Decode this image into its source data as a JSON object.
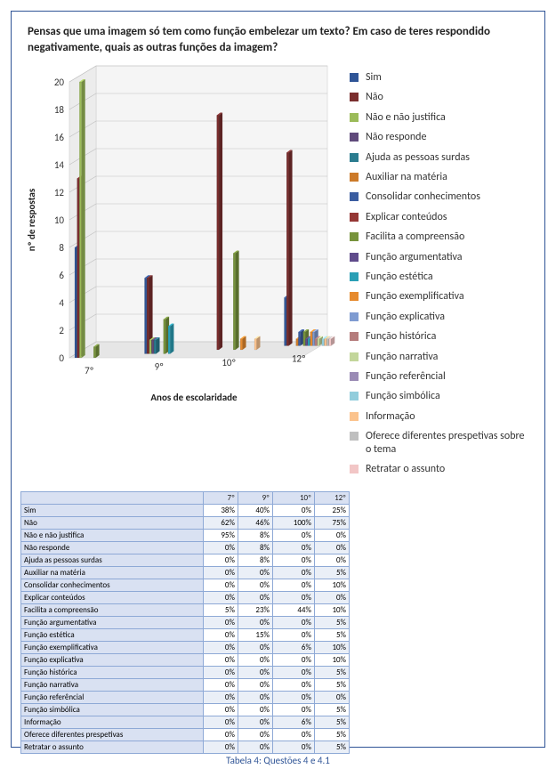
{
  "title": "Pensas que uma imagem só tem como função embelezar um texto? Em caso de teres respondido negativamente, quais as outras funções da imagem?",
  "caption": "Tabela 4: Questões 4 e 4.1",
  "chart": {
    "type": "3d-bar",
    "ylabel": "nº de respostas",
    "xlabel": "Anos de escolaridade",
    "ylim": [
      0,
      20
    ],
    "ytick_step": 2,
    "label_fontsize": 11,
    "tick_fontsize": 11,
    "grid_color": "#bfbfbf",
    "background_color": "#ffffff",
    "floor_color": "#e6e6e6",
    "categories": [
      "7º",
      "9º",
      "10º",
      "12º"
    ],
    "series": [
      {
        "name": "Sim",
        "color": "#2f5597",
        "values": [
          8,
          5.5,
          0,
          3.5
        ]
      },
      {
        "name": "Não",
        "color": "#7a2e2e",
        "values": [
          13,
          5.5,
          17,
          14
        ]
      },
      {
        "name": "Não e não justifica",
        "color": "#9bbb59",
        "values": [
          20,
          1,
          0,
          0
        ]
      },
      {
        "name": "Não responde",
        "color": "#604a7b",
        "values": [
          0,
          1,
          0,
          0
        ]
      },
      {
        "name": "Ajuda as pessoas surdas",
        "color": "#2b7c8f",
        "values": [
          0,
          1,
          0,
          0
        ]
      },
      {
        "name": "Auxiliar na matéria",
        "color": "#cc7a29",
        "values": [
          0,
          0,
          0,
          0.5
        ]
      },
      {
        "name": "Consolidar conhecimentos",
        "color": "#3b5da0",
        "values": [
          0,
          0,
          0,
          1
        ]
      },
      {
        "name": "Explicar conteúdos",
        "color": "#953735",
        "values": [
          0,
          0,
          0,
          0
        ]
      },
      {
        "name": "Facilita a compreensão",
        "color": "#77933c",
        "values": [
          0.8,
          2.5,
          7,
          1
        ]
      },
      {
        "name": "Função argumentativa",
        "color": "#5f4b8b",
        "values": [
          0,
          0,
          0,
          0.5
        ]
      },
      {
        "name": "Função estética",
        "color": "#2a9fb5",
        "values": [
          0,
          2,
          0,
          0.5
        ]
      },
      {
        "name": "Função exemplificativa",
        "color": "#e68a2e",
        "values": [
          0,
          0,
          0.8,
          1
        ]
      },
      {
        "name": "Função explicativa",
        "color": "#7f9bd1",
        "values": [
          0,
          0,
          0,
          1
        ]
      },
      {
        "name": "Função histórica",
        "color": "#b57c7c",
        "values": [
          0,
          0,
          0,
          0.5
        ]
      },
      {
        "name": "Função narrativa",
        "color": "#c3d69b",
        "values": [
          0,
          0,
          0,
          0.5
        ]
      },
      {
        "name": "Função referêncial",
        "color": "#9a8bb5",
        "values": [
          0,
          0,
          0,
          0
        ]
      },
      {
        "name": "Função simbólica",
        "color": "#92cddc",
        "values": [
          0,
          0,
          0,
          0.5
        ]
      },
      {
        "name": "Informação",
        "color": "#fbc38d",
        "values": [
          0,
          0,
          0.8,
          0.5
        ]
      },
      {
        "name": "Oferece diferentes prespetivas sobre o tema",
        "color": "#bfbfbf",
        "values": [
          0,
          0,
          0,
          0.5
        ]
      },
      {
        "name": "Retratar o assunto",
        "color": "#f2c6c6",
        "values": [
          0,
          0,
          0,
          0.5
        ]
      }
    ]
  },
  "table": {
    "columns": [
      "",
      "7º",
      "9º",
      "10º",
      "12º"
    ],
    "rows": [
      [
        "Sim",
        "38%",
        "40%",
        "0%",
        "25%"
      ],
      [
        "Não",
        "62%",
        "46%",
        "100%",
        "75%"
      ],
      [
        "Não e não justifica",
        "95%",
        "8%",
        "0%",
        "0%"
      ],
      [
        "Não responde",
        "0%",
        "8%",
        "0%",
        "0%"
      ],
      [
        "Ajuda as pessoas surdas",
        "0%",
        "8%",
        "0%",
        "0%"
      ],
      [
        "Auxiliar na matéria",
        "0%",
        "0%",
        "0%",
        "5%"
      ],
      [
        "Consolidar conhecimentos",
        "0%",
        "0%",
        "0%",
        "10%"
      ],
      [
        "Explicar conteúdos",
        "0%",
        "0%",
        "0%",
        "0%"
      ],
      [
        "Facilita a compreensão",
        "5%",
        "23%",
        "44%",
        "10%"
      ],
      [
        "Função argumentativa",
        "0%",
        "0%",
        "0%",
        "5%"
      ],
      [
        "Função estética",
        "0%",
        "15%",
        "0%",
        "5%"
      ],
      [
        "Função exemplificativa",
        "0%",
        "0%",
        "6%",
        "10%"
      ],
      [
        "Função explicativa",
        "0%",
        "0%",
        "0%",
        "10%"
      ],
      [
        "Função histórica",
        "0%",
        "0%",
        "0%",
        "5%"
      ],
      [
        "Função narrativa",
        "0%",
        "0%",
        "0%",
        "5%"
      ],
      [
        "Função referêncial",
        "0%",
        "0%",
        "0%",
        "0%"
      ],
      [
        "Função simbólica",
        "0%",
        "0%",
        "0%",
        "5%"
      ],
      [
        "Informação",
        "0%",
        "0%",
        "6%",
        "5%"
      ],
      [
        "Oferece diferentes prespetivas",
        "0%",
        "0%",
        "0%",
        "5%"
      ],
      [
        "Retratar o assunto",
        "0%",
        "0%",
        "0%",
        "5%"
      ]
    ]
  }
}
